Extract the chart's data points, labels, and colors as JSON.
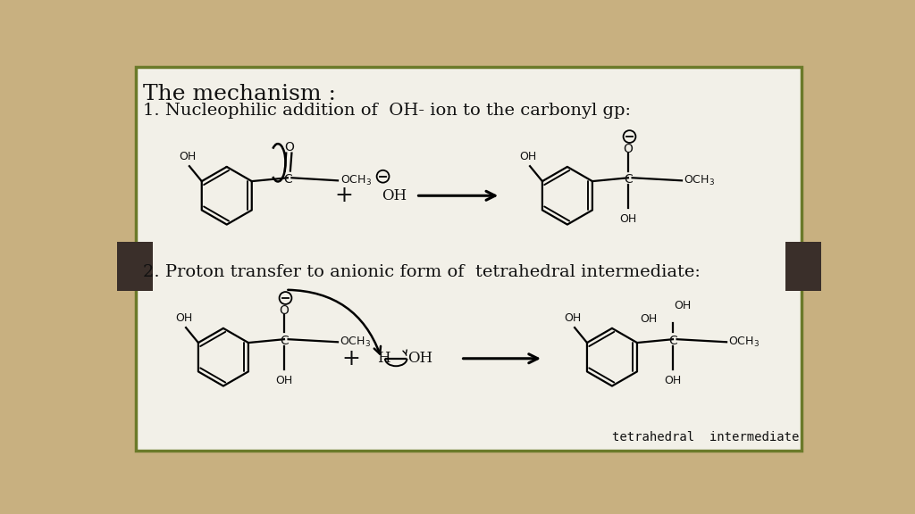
{
  "bg_color": "#c8b080",
  "panel_color": "#f2f0e8",
  "panel_border_color": "#6b7a2a",
  "title_text": "The mechanism :",
  "step1_text": "1. Nucleophilic addition of  OH- ion to the carbonyl gp:",
  "step2_text": "2. Proton transfer to anionic form of  tetrahedral intermediate:",
  "footer_text": "tetrahedral  intermediate",
  "text_color": "#111111",
  "lw": 1.6
}
